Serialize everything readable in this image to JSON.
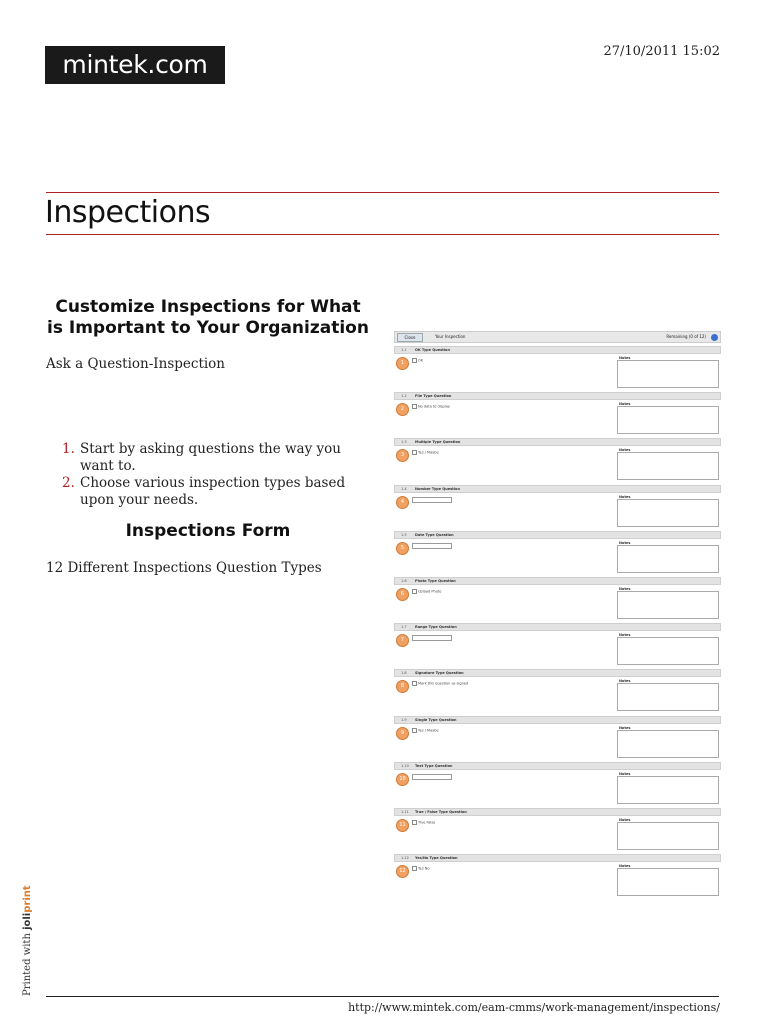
{
  "header": {
    "logo": "mintek.com",
    "datetime": "27/10/2011 15:02"
  },
  "page": {
    "title": "Inspections"
  },
  "content": {
    "heading1": "Customize Inspections for What is Important to Your Organization",
    "intro": "Ask a Question-Inspection",
    "steps": [
      "Start by asking questions the way you want to.",
      "Choose various inspection types based upon your needs."
    ],
    "heading2": "Inspections Form",
    "types_line": "12 Different Inspections Question Types"
  },
  "screenshot": {
    "button": "Close",
    "bar_title": "Your Inspection",
    "remaining": "Remaining (0 of 12)",
    "notes_label": "Notes",
    "questions": [
      {
        "num": "1.1",
        "title": "OK Type Question",
        "badge": "1",
        "control": "OK"
      },
      {
        "num": "1.2",
        "title": "File Type Question",
        "badge": "2",
        "control": "No data to display"
      },
      {
        "num": "1.3",
        "title": "Multiple Type Question",
        "badge": "3",
        "control": "Yes / Maybe"
      },
      {
        "num": "1.4",
        "title": "Number Type Question",
        "badge": "4",
        "control": ""
      },
      {
        "num": "1.5",
        "title": "Date Type Question",
        "badge": "5",
        "control": ""
      },
      {
        "num": "1.6",
        "title": "Photo Type Question",
        "badge": "6",
        "control": "Upload Photo"
      },
      {
        "num": "1.7",
        "title": "Range Type Question",
        "badge": "7",
        "control": ""
      },
      {
        "num": "1.8",
        "title": "Signature Type Question",
        "badge": "8",
        "control": "Mark this question as signed"
      },
      {
        "num": "1.9",
        "title": "Single Type Question",
        "badge": "9",
        "control": "Yes / Maybe"
      },
      {
        "num": "1.10",
        "title": "Text Type Question",
        "badge": "10",
        "control": ""
      },
      {
        "num": "1.11",
        "title": "True / False Type Question",
        "badge": "11",
        "control": "True  False"
      },
      {
        "num": "1.12",
        "title": "Yes/No Type Question",
        "badge": "12",
        "control": "Yes  No"
      }
    ]
  },
  "sidebar": {
    "printed_with": "Printed with",
    "brand_a": "joli",
    "brand_b": "print"
  },
  "footer": {
    "url": "http://www.mintek.com/eam-cmms/work-management/inspections/"
  }
}
